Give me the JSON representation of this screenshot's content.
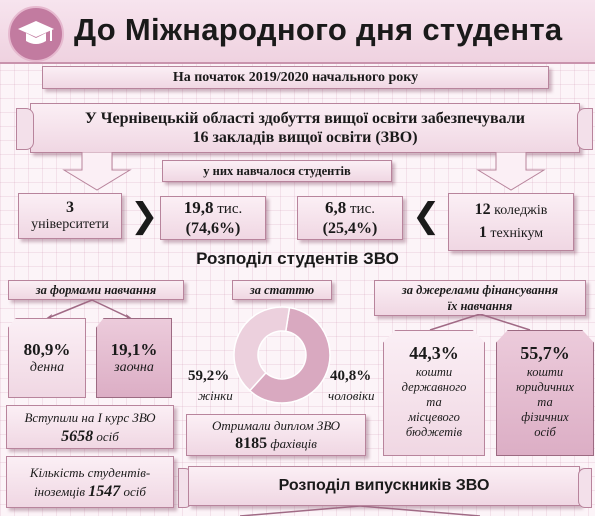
{
  "title": "До Міжнародного дня студента",
  "header_icon": "graduation-cap-icon",
  "colors": {
    "accent": "#c27ba0",
    "title_bg": "#f3d9e6",
    "box_bg": "#f3e0ea",
    "dark_box": "#dcaec5"
  },
  "year_line": "На початок 2019/2020 начального року",
  "intro": {
    "line1": "У Чернівецькій області здобуття вищої освіти забезпечували",
    "line2": "16 закладів вищої освіти (ЗВО)"
  },
  "students_label": "у них навчалося студентів",
  "universities": {
    "num": "3",
    "label": "університети"
  },
  "univ_students": {
    "value": "19,8",
    "unit": "тис.",
    "pct": "(74,6%)"
  },
  "college_students": {
    "value": "6,8",
    "unit": "тис.",
    "pct": "(25,4%)"
  },
  "colleges": {
    "num1": "12",
    "label1": "коледжів",
    "num2": "1",
    "label2": "технікум"
  },
  "distribution_title": "Розподіл студентів ЗВО",
  "by_form": {
    "label": "за формами навчання",
    "day": {
      "value": "80,9%",
      "label": "денна"
    },
    "extramural": {
      "value": "19,1%",
      "label": "заочна"
    }
  },
  "by_gender": {
    "label": "за статтю",
    "female": {
      "value": "59,2%",
      "label": "жінки",
      "share": 0.592
    },
    "male": {
      "value": "40,8%",
      "label": "чоловіки",
      "share": 0.408
    }
  },
  "by_funding": {
    "label1": "за джерелами фінансування",
    "label2": "їх навчання",
    "state": {
      "value": "44,3%",
      "l1": "кошти",
      "l2": "державного",
      "l3": "та",
      "l4": "місцевого",
      "l5": "бюджетів"
    },
    "private": {
      "value": "55,7%",
      "l1": "кошти",
      "l2": "юридичних",
      "l3": "та",
      "l4": "фізичних",
      "l5": "осіб"
    }
  },
  "first_year": {
    "text": "Вступили на I курс ЗВО",
    "value": "5658",
    "unit": "осіб"
  },
  "foreign": {
    "line1": "Кількість студентів-",
    "line2": "іноземців",
    "value": "1547",
    "unit": "осіб"
  },
  "diplomas": {
    "text": "Отримали диплом ЗВО",
    "value": "8185",
    "unit": "фахівців"
  },
  "graduates_title": "Розподіл випускників ЗВО"
}
